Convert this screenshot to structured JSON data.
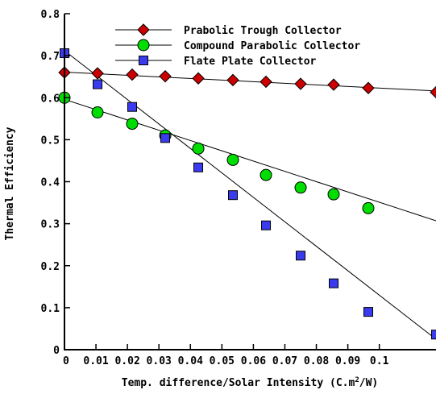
{
  "chart_data": {
    "type": "line",
    "title": "",
    "xlabel": "Temp. difference/Solar Intensity (C.m",
    "xlabel_sup": "2",
    "xlabel_tail": "/W)",
    "ylabel": "Thermal Efficiency",
    "xlim": [
      0,
      0.118
    ],
    "ylim": [
      0,
      0.8
    ],
    "x_ticks": [
      0,
      0.01,
      0.02,
      0.03,
      0.04,
      0.05,
      0.06,
      0.07,
      0.08,
      0.09,
      0.1
    ],
    "x_tick_labels": [
      "0",
      "0.01",
      "0.02",
      "0.03",
      "0.04",
      "0.05",
      "0.06",
      "0.07",
      "0.08",
      "0.09",
      "0.1"
    ],
    "y_ticks": [
      0,
      0.1,
      0.2,
      0.3,
      0.4,
      0.5,
      0.6,
      0.7,
      0.8
    ],
    "y_tick_labels": [
      "0",
      "0.1",
      "0.2",
      "0.3",
      "0.4",
      "0.5",
      "0.6",
      "0.7",
      "0.8"
    ],
    "legend_position": "top-center",
    "grid": false,
    "series": [
      {
        "name": "Prabolic Trough Collector",
        "marker": "diamond",
        "color": "#cc0000",
        "points": [
          [
            0,
            0.66
          ],
          [
            0.0105,
            0.658
          ],
          [
            0.0215,
            0.655
          ],
          [
            0.032,
            0.651
          ],
          [
            0.0425,
            0.646
          ],
          [
            0.0535,
            0.642
          ],
          [
            0.064,
            0.638
          ],
          [
            0.075,
            0.633
          ],
          [
            0.0855,
            0.631
          ],
          [
            0.0965,
            0.623
          ],
          [
            0.118,
            0.613
          ]
        ],
        "line": [
          [
            0,
            0.661
          ],
          [
            0.118,
            0.616
          ]
        ]
      },
      {
        "name": "Compound Parabolic Collector",
        "marker": "circle",
        "color": "#00dd00",
        "points": [
          [
            0,
            0.6
          ],
          [
            0.0105,
            0.565
          ],
          [
            0.0215,
            0.538
          ],
          [
            0.032,
            0.51
          ],
          [
            0.0425,
            0.479
          ],
          [
            0.0535,
            0.452
          ],
          [
            0.064,
            0.416
          ],
          [
            0.075,
            0.386
          ],
          [
            0.0855,
            0.37
          ],
          [
            0.0965,
            0.337
          ]
        ],
        "line": [
          [
            0,
            0.596
          ],
          [
            0.118,
            0.307
          ]
        ]
      },
      {
        "name": "Flate Plate Collector",
        "marker": "square",
        "color": "#3a3aee",
        "points": [
          [
            0,
            0.706
          ],
          [
            0.0105,
            0.632
          ],
          [
            0.0215,
            0.578
          ],
          [
            0.032,
            0.504
          ],
          [
            0.0425,
            0.434
          ],
          [
            0.0535,
            0.368
          ],
          [
            0.064,
            0.296
          ],
          [
            0.075,
            0.224
          ],
          [
            0.0855,
            0.158
          ],
          [
            0.0965,
            0.09
          ],
          [
            0.118,
            0.036
          ]
        ],
        "line": [
          [
            0,
            0.712
          ],
          [
            0.118,
            0.025
          ]
        ]
      }
    ]
  }
}
